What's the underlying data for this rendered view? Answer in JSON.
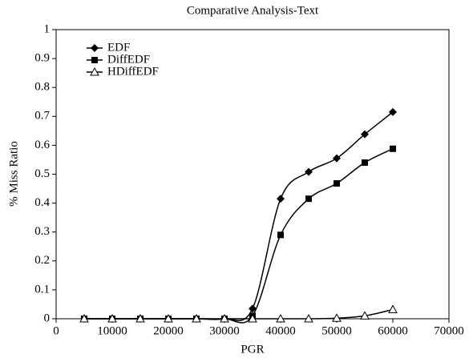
{
  "chart_data": {
    "type": "line",
    "title": "Comparative Analysis-Text",
    "x_label": "PGR",
    "y_label": "% Miss Ratio",
    "x": [
      5000,
      10000,
      15000,
      20000,
      25000,
      30000,
      35000,
      40000,
      45000,
      50000,
      55000,
      60000
    ],
    "series": [
      {
        "name": "EDF",
        "color": "#000000",
        "marker": "diamond",
        "values": [
          0,
          0,
          0,
          0,
          0,
          0,
          0.035,
          0.415,
          0.508,
          0.555,
          0.638,
          0.715
        ]
      },
      {
        "name": "DiffEDF",
        "color": "#000000",
        "marker": "square",
        "values": [
          0,
          0,
          0,
          0,
          0,
          0,
          0.01,
          0.29,
          0.415,
          0.468,
          0.54,
          0.588
        ]
      },
      {
        "name": "HDiffEDF",
        "color": "#000000",
        "marker": "triangle",
        "values": [
          0,
          0,
          0,
          0,
          0,
          0,
          0,
          0,
          0,
          0.002,
          0.01,
          0.032
        ]
      }
    ],
    "xlim": [
      0,
      70000
    ],
    "xticks": [
      0,
      10000,
      20000,
      30000,
      40000,
      50000,
      60000,
      70000
    ],
    "ylim": [
      0,
      1
    ],
    "yticks": [
      0,
      0.1,
      0.2,
      0.3,
      0.4,
      0.5,
      0.6,
      0.7,
      0.8,
      0.9,
      1
    ],
    "grid": false,
    "legend": "upper left"
  }
}
